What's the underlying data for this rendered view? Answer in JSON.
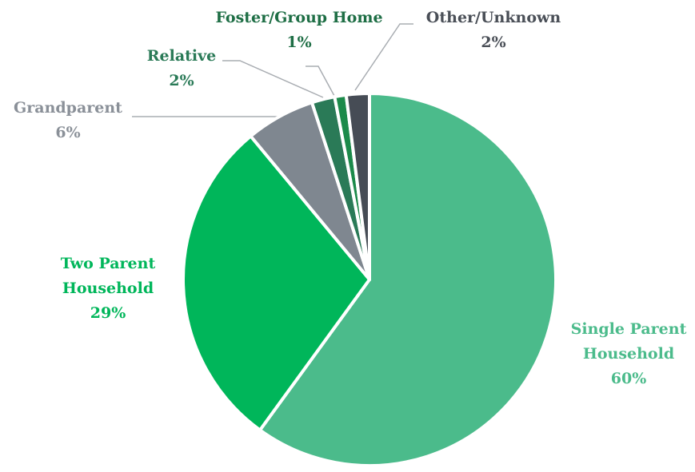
{
  "chart_data": {
    "type": "pie",
    "categories": [
      "Single Parent Household",
      "Two Parent Household",
      "Grandparent",
      "Relative",
      "Foster/Group Home",
      "Other/Unknown"
    ],
    "values": [
      60,
      29,
      6,
      2,
      1,
      2
    ],
    "value_labels": [
      "60%",
      "29%",
      "6%",
      "2%",
      "1%",
      "2%"
    ],
    "colors": [
      "#4bbb8b",
      "#00b65a",
      "#7f8790",
      "#2a7a57",
      "#1c8a4a",
      "#464c55"
    ],
    "label_colors": [
      "#4bbb8b",
      "#00b65a",
      "#8a9098",
      "#2a7a57",
      "#1e6e45",
      "#4a4f57"
    ]
  }
}
